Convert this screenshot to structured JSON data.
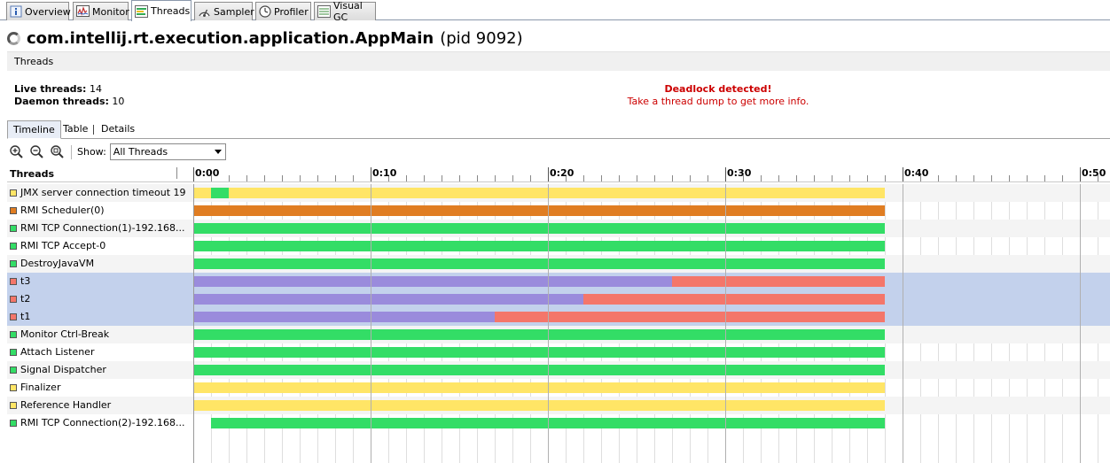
{
  "tabs": [
    {
      "label": "Overview",
      "icon": "info-icon"
    },
    {
      "label": "Monitor",
      "icon": "monitor-icon"
    },
    {
      "label": "Threads",
      "icon": "threads-icon",
      "active": true
    },
    {
      "label": "Sampler",
      "icon": "sampler-icon"
    },
    {
      "label": "Profiler",
      "icon": "profiler-icon"
    },
    {
      "label": "Visual GC",
      "icon": "visual-gc-icon"
    }
  ],
  "header": {
    "app_name": "com.intellij.rt.execution.application.AppMain",
    "pid": "(pid 9092)"
  },
  "section": {
    "title": "Threads"
  },
  "stats": {
    "live_label": "Live threads:",
    "live_value": "14",
    "daemon_label": "Daemon threads:",
    "daemon_value": "10"
  },
  "deadlock": {
    "title": "Deadlock detected!",
    "message": "Take a thread dump to get more info."
  },
  "subtabs": [
    {
      "label": "Timeline",
      "active": true
    },
    {
      "label": "Table"
    },
    {
      "label": "Details"
    }
  ],
  "toolbar": {
    "show_label": "Show:",
    "show_value": "All Threads"
  },
  "timeline": {
    "column_header": "Threads",
    "time_labels": [
      "0:00",
      "0:10",
      "0:20",
      "0:30",
      "0:40",
      "0:50"
    ],
    "end_seconds": 39,
    "threads": [
      {
        "name": "JMX server connection timeout 19",
        "state_color": "#ffe566",
        "segments": [
          {
            "from": 0,
            "to": 1,
            "color": "#ffe566"
          },
          {
            "from": 1,
            "to": 2,
            "color": "#33dd66"
          },
          {
            "from": 2,
            "to": 39,
            "color": "#ffe566"
          }
        ]
      },
      {
        "name": "RMI Scheduler(0)",
        "state_color": "#e07d22",
        "segments": [
          {
            "from": 0,
            "to": 39,
            "color": "#e07d22"
          }
        ]
      },
      {
        "name": "RMI TCP Connection(1)-192.168...",
        "state_color": "#33dd66",
        "segments": [
          {
            "from": 0,
            "to": 39,
            "color": "#33dd66"
          }
        ]
      },
      {
        "name": "RMI TCP Accept-0",
        "state_color": "#33dd66",
        "segments": [
          {
            "from": 0,
            "to": 39,
            "color": "#33dd66"
          }
        ]
      },
      {
        "name": "DestroyJavaVM",
        "state_color": "#33dd66",
        "segments": [
          {
            "from": 0,
            "to": 39,
            "color": "#33dd66"
          }
        ]
      },
      {
        "name": "t3",
        "state_color": "#f4766a",
        "selected": true,
        "segments": [
          {
            "from": 0,
            "to": 27,
            "color": "#9a8bdc"
          },
          {
            "from": 27,
            "to": 39,
            "color": "#f4766a"
          }
        ]
      },
      {
        "name": "t2",
        "state_color": "#f4766a",
        "selected": true,
        "segments": [
          {
            "from": 0,
            "to": 22,
            "color": "#9a8bdc"
          },
          {
            "from": 22,
            "to": 39,
            "color": "#f4766a"
          }
        ]
      },
      {
        "name": "t1",
        "state_color": "#f4766a",
        "selected": true,
        "segments": [
          {
            "from": 0,
            "to": 17,
            "color": "#9a8bdc"
          },
          {
            "from": 17,
            "to": 39,
            "color": "#f4766a"
          }
        ]
      },
      {
        "name": "Monitor Ctrl-Break",
        "state_color": "#33dd66",
        "segments": [
          {
            "from": 0,
            "to": 39,
            "color": "#33dd66"
          }
        ]
      },
      {
        "name": "Attach Listener",
        "state_color": "#33dd66",
        "segments": [
          {
            "from": 0,
            "to": 39,
            "color": "#33dd66"
          }
        ]
      },
      {
        "name": "Signal Dispatcher",
        "state_color": "#33dd66",
        "segments": [
          {
            "from": 0,
            "to": 39,
            "color": "#33dd66"
          }
        ]
      },
      {
        "name": "Finalizer",
        "state_color": "#ffe566",
        "segments": [
          {
            "from": 0,
            "to": 39,
            "color": "#ffe566"
          }
        ]
      },
      {
        "name": "Reference Handler",
        "state_color": "#ffe566",
        "segments": [
          {
            "from": 0,
            "to": 39,
            "color": "#ffe566"
          }
        ]
      },
      {
        "name": "RMI TCP Connection(2)-192.168...",
        "state_color": "#33dd66",
        "segments": [
          {
            "from": 1,
            "to": 39,
            "color": "#33dd66"
          }
        ]
      }
    ]
  }
}
